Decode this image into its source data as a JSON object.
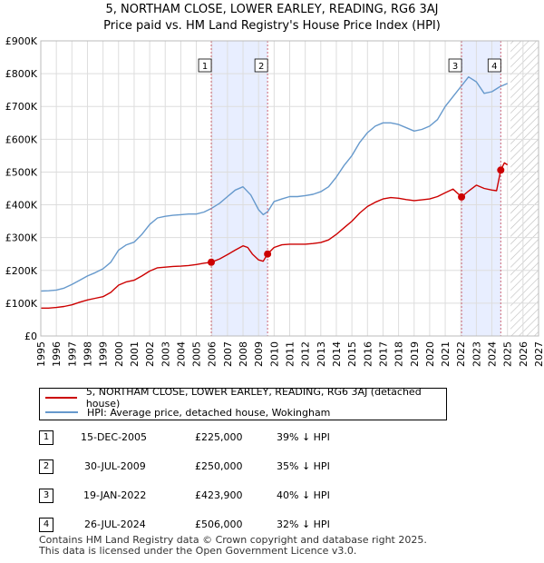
{
  "title_line1": "5, NORTHAM CLOSE, LOWER EARLEY, READING, RG6 3AJ",
  "title_line2": "Price paid vs. HM Land Registry's House Price Index (HPI)",
  "legend": {
    "property": "5, NORTHAM CLOSE, LOWER EARLEY, READING, RG6 3AJ (detached house)",
    "hpi": "HPI: Average price, detached house, Wokingham"
  },
  "colors": {
    "property": "#cc0000",
    "hpi": "#6699cc",
    "shade": "#e8eeff",
    "marker_line": "#cc6677"
  },
  "sales": [
    {
      "num": "1",
      "date": "15-DEC-2005",
      "price": "£225,000",
      "hpi_diff": "39% ↓ HPI"
    },
    {
      "num": "2",
      "date": "30-JUL-2009",
      "price": "£250,000",
      "hpi_diff": "35% ↓ HPI"
    },
    {
      "num": "3",
      "date": "19-JAN-2022",
      "price": "£423,900",
      "hpi_diff": "40% ↓ HPI"
    },
    {
      "num": "4",
      "date": "26-JUL-2024",
      "price": "£506,000",
      "hpi_diff": "32% ↓ HPI"
    }
  ],
  "footer_line1": "Contains HM Land Registry data © Crown copyright and database right 2025.",
  "footer_line2": "This data is licensed under the Open Government Licence v3.0.",
  "chart_data": {
    "type": "line",
    "title": "5, NORTHAM CLOSE, LOWER EARLEY, READING, RG6 3AJ",
    "subtitle": "Price paid vs. HM Land Registry's House Price Index (HPI)",
    "xlabel": "",
    "ylabel": "",
    "xlim": [
      1995,
      2027
    ],
    "ylim": [
      0,
      900000
    ],
    "y_ticks": [
      0,
      100000,
      200000,
      300000,
      400000,
      500000,
      600000,
      700000,
      800000,
      900000
    ],
    "y_tick_labels": [
      "£0",
      "£100K",
      "£200K",
      "£300K",
      "£400K",
      "£500K",
      "£600K",
      "£700K",
      "£800K",
      "£900K"
    ],
    "x_ticks": [
      1995,
      1996,
      1997,
      1998,
      1999,
      2000,
      2001,
      2002,
      2003,
      2004,
      2005,
      2006,
      2007,
      2008,
      2009,
      2010,
      2011,
      2012,
      2013,
      2014,
      2015,
      2016,
      2017,
      2018,
      2019,
      2020,
      2021,
      2022,
      2023,
      2024,
      2025,
      2026,
      2027
    ],
    "grid": true,
    "legend_position": "below",
    "hatched_future_from": 2025.2,
    "shaded_ranges": [
      [
        2005.96,
        2009.58
      ],
      [
        2022.05,
        2024.57
      ]
    ],
    "markers": [
      {
        "label": "1",
        "x": 2005.96,
        "y": 225000
      },
      {
        "label": "2",
        "x": 2009.58,
        "y": 250000
      },
      {
        "label": "3",
        "x": 2022.05,
        "y": 423900
      },
      {
        "label": "4",
        "x": 2024.57,
        "y": 506000
      }
    ],
    "series": [
      {
        "name": "5, NORTHAM CLOSE, LOWER EARLEY, READING, RG6 3AJ (detached house)",
        "x": [
          1995.0,
          1995.5,
          1996.0,
          1996.5,
          1997.0,
          1997.5,
          1998.0,
          1998.5,
          1999.0,
          1999.5,
          2000.0,
          2000.5,
          2001.0,
          2001.5,
          2002.0,
          2002.5,
          2003.0,
          2003.5,
          2004.0,
          2004.5,
          2005.0,
          2005.5,
          2005.96,
          2006.5,
          2007.0,
          2007.5,
          2008.0,
          2008.3,
          2008.6,
          2009.0,
          2009.3,
          2009.58,
          2010.0,
          2010.5,
          2011.0,
          2011.5,
          2012.0,
          2012.5,
          2013.0,
          2013.5,
          2014.0,
          2014.5,
          2015.0,
          2015.5,
          2016.0,
          2016.5,
          2017.0,
          2017.5,
          2018.0,
          2018.5,
          2019.0,
          2019.5,
          2020.0,
          2020.5,
          2021.0,
          2021.5,
          2022.05,
          2022.5,
          2023.0,
          2023.5,
          2024.0,
          2024.3,
          2024.57,
          2024.8,
          2025.0
        ],
        "values": [
          85000,
          85000,
          87000,
          90000,
          95000,
          103000,
          110000,
          115000,
          120000,
          133000,
          155000,
          165000,
          170000,
          183000,
          198000,
          208000,
          210000,
          212000,
          213000,
          215000,
          218000,
          222000,
          225000,
          235000,
          248000,
          262000,
          275000,
          270000,
          250000,
          232000,
          228000,
          250000,
          270000,
          278000,
          280000,
          280000,
          280000,
          282000,
          285000,
          293000,
          310000,
          330000,
          350000,
          375000,
          395000,
          408000,
          418000,
          422000,
          420000,
          416000,
          413000,
          415000,
          418000,
          425000,
          437000,
          448000,
          423900,
          442000,
          460000,
          450000,
          445000,
          443000,
          506000,
          528000,
          522000
        ]
      },
      {
        "name": "HPI: Average price, detached house, Wokingham",
        "x": [
          1995.0,
          1995.5,
          1996.0,
          1996.5,
          1997.0,
          1997.5,
          1998.0,
          1998.5,
          1999.0,
          1999.5,
          2000.0,
          2000.5,
          2001.0,
          2001.5,
          2002.0,
          2002.5,
          2003.0,
          2003.5,
          2004.0,
          2004.5,
          2005.0,
          2005.5,
          2006.0,
          2006.5,
          2007.0,
          2007.5,
          2008.0,
          2008.5,
          2009.0,
          2009.3,
          2009.6,
          2010.0,
          2010.5,
          2011.0,
          2011.5,
          2012.0,
          2012.5,
          2013.0,
          2013.5,
          2014.0,
          2014.5,
          2015.0,
          2015.5,
          2016.0,
          2016.5,
          2017.0,
          2017.5,
          2018.0,
          2018.5,
          2019.0,
          2019.5,
          2020.0,
          2020.5,
          2021.0,
          2021.5,
          2022.0,
          2022.5,
          2023.0,
          2023.5,
          2024.0,
          2024.5,
          2025.0
        ],
        "values": [
          137000,
          138000,
          140000,
          146000,
          157000,
          170000,
          183000,
          193000,
          205000,
          225000,
          262000,
          278000,
          286000,
          310000,
          340000,
          360000,
          365000,
          368000,
          370000,
          372000,
          372000,
          378000,
          390000,
          405000,
          425000,
          445000,
          455000,
          430000,
          385000,
          370000,
          380000,
          410000,
          418000,
          425000,
          425000,
          428000,
          432000,
          440000,
          455000,
          485000,
          520000,
          550000,
          590000,
          620000,
          640000,
          650000,
          650000,
          645000,
          635000,
          625000,
          630000,
          640000,
          660000,
          700000,
          730000,
          760000,
          790000,
          775000,
          740000,
          745000,
          760000,
          770000
        ]
      }
    ]
  }
}
